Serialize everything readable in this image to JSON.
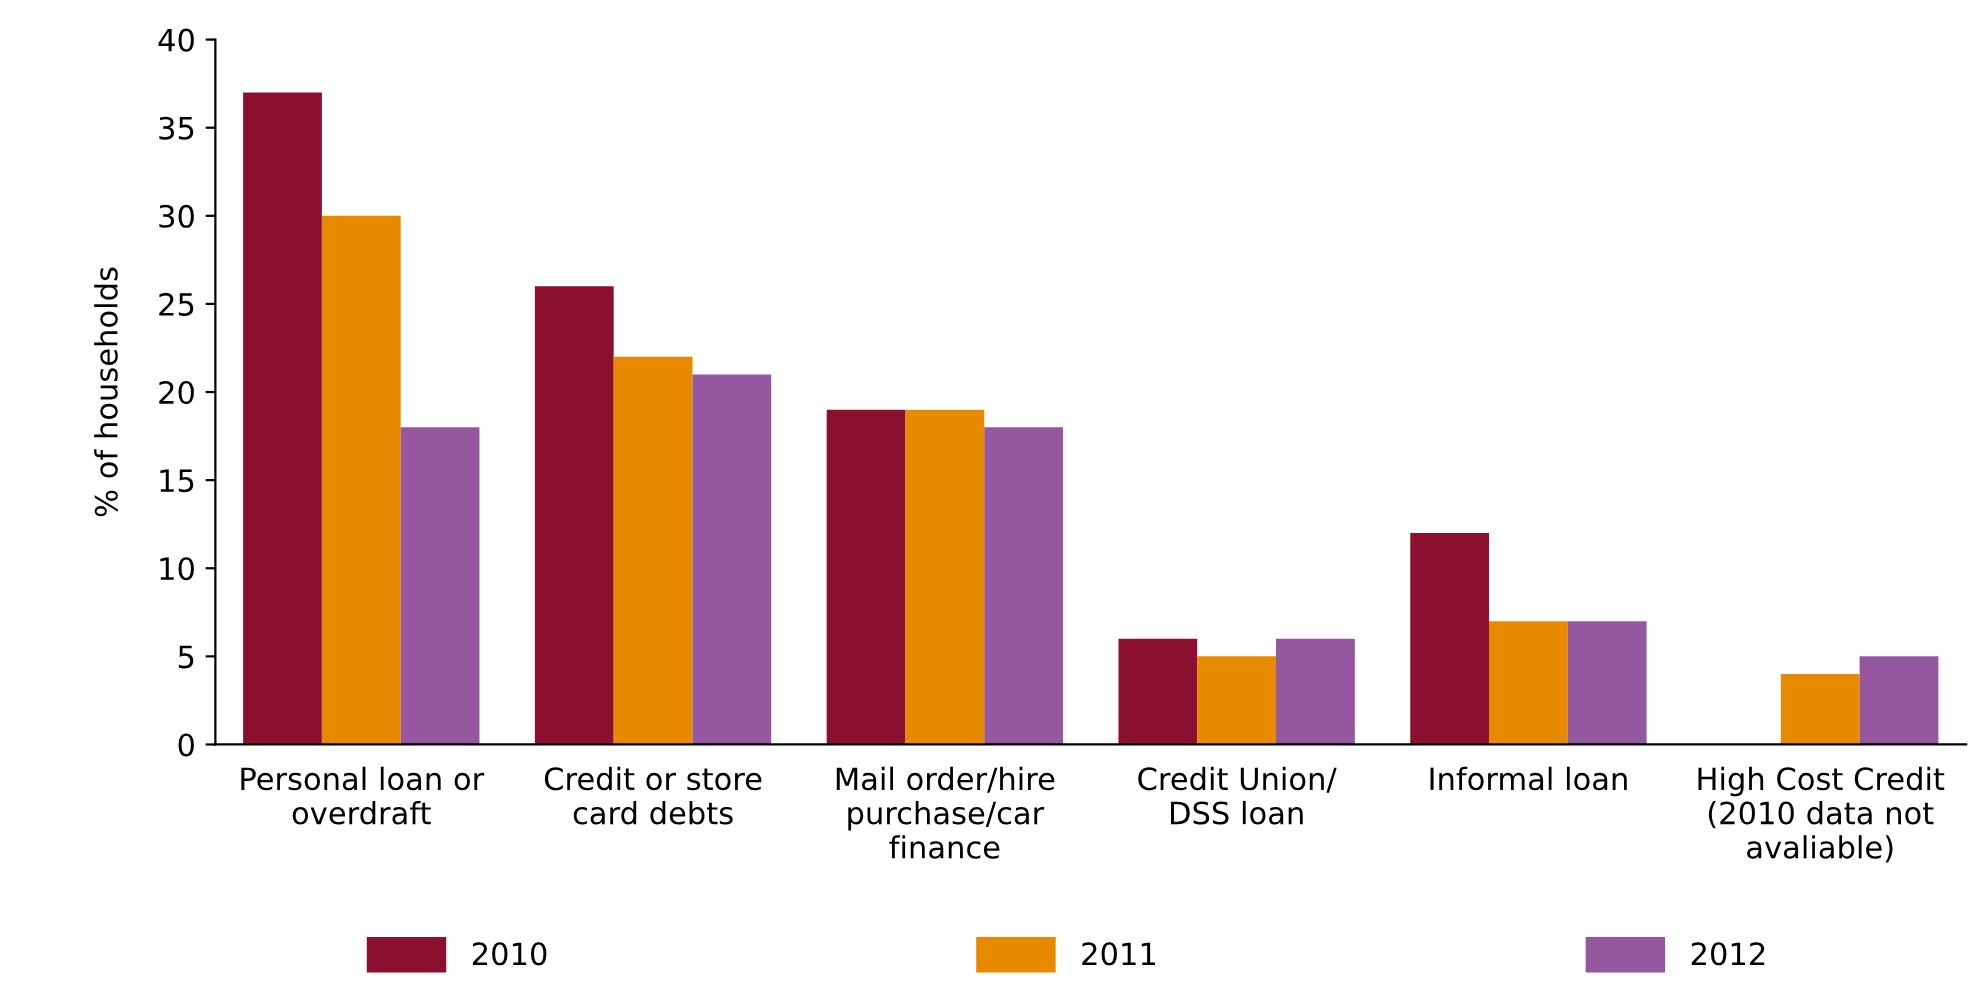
{
  "chart_data": {
    "type": "bar",
    "categories": [
      "Personal loan or\noverdraft",
      "Credit or store\ncard debts",
      "Mail order/hire\npurchase/car\nfinance",
      "Credit Union/\nDSS loan",
      "Informal loan",
      "High Cost Credit\n(2010 data not\navaliable)"
    ],
    "series": [
      {
        "name": "2010",
        "color": "#8b1030",
        "values": [
          37,
          26,
          19,
          6,
          12,
          null
        ]
      },
      {
        "name": "2011",
        "color": "#e88a00",
        "values": [
          30,
          22,
          19,
          5,
          7,
          4
        ]
      },
      {
        "name": "2012",
        "color": "#9558a0",
        "values": [
          18,
          21,
          18,
          6,
          7,
          5
        ]
      }
    ],
    "ylabel": "% of households",
    "ylim": [
      0,
      40
    ],
    "yticks": [
      0,
      5,
      10,
      15,
      20,
      25,
      30,
      35,
      40
    ],
    "grid": false,
    "legend": "bottom"
  }
}
